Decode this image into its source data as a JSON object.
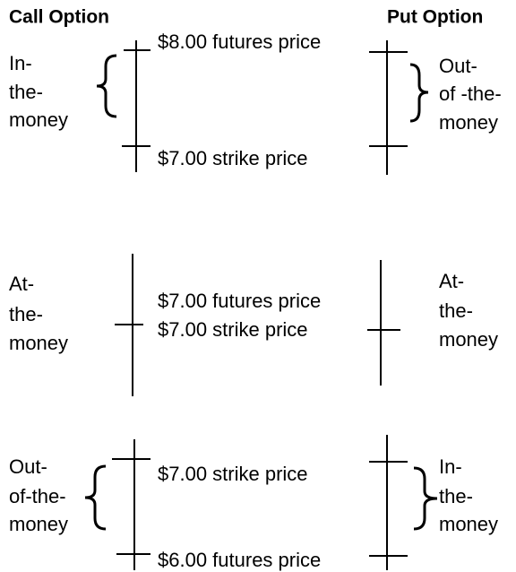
{
  "headers": {
    "call": "Call Option",
    "put": "Put Option"
  },
  "sections": [
    {
      "left": [
        "In-",
        "the-",
        "money"
      ],
      "labels": [
        "$8.00 futures price",
        "$7.00 strike price"
      ],
      "right": [
        "Out-",
        "of -the-",
        "money"
      ]
    },
    {
      "left": [
        "At-",
        "the-",
        "money"
      ],
      "labels": [
        "$7.00 futures price",
        "$7.00 strike price"
      ],
      "right": [
        "At-",
        "the-",
        "money"
      ]
    },
    {
      "left": [
        "Out-",
        "of-the-",
        "money"
      ],
      "labels": [
        "$7.00 strike price",
        "$6.00 futures price"
      ],
      "right": [
        "In-",
        "the-",
        "money"
      ]
    }
  ]
}
